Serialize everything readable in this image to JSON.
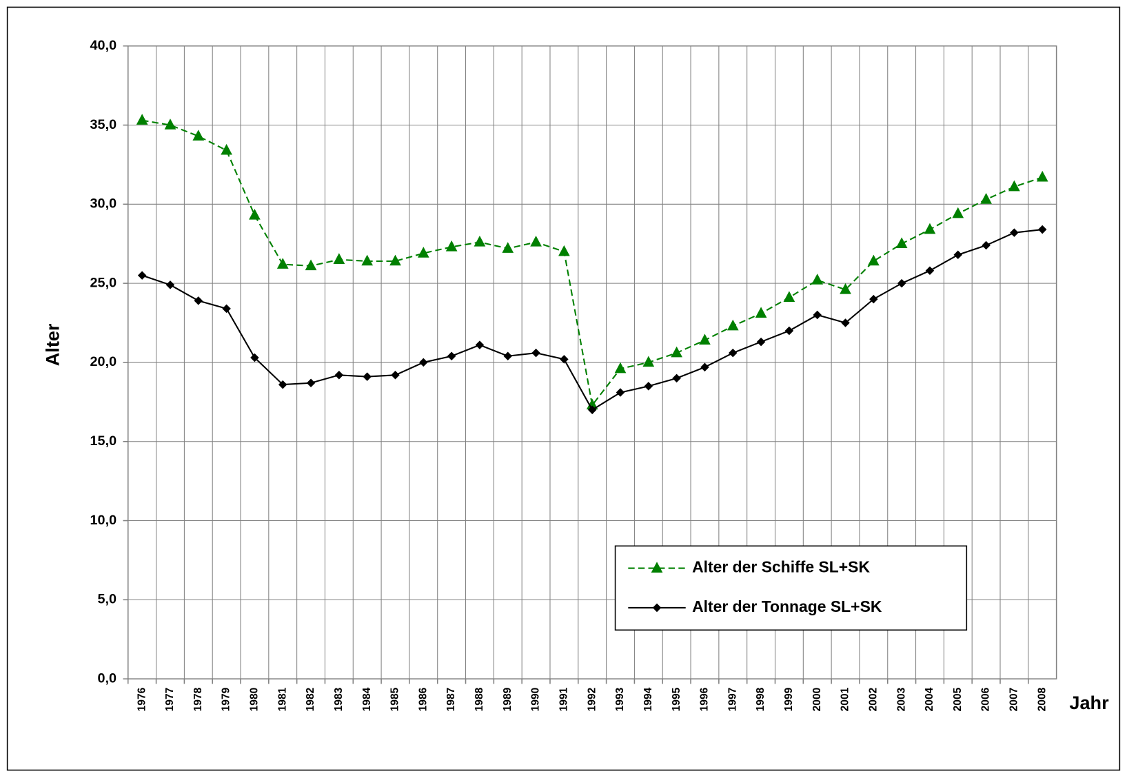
{
  "chart_data": {
    "type": "line",
    "x_label": "Jahr",
    "y_label": "Alter",
    "categories": [
      "1976",
      "1977",
      "1978",
      "1979",
      "1980",
      "1981",
      "1982",
      "1983",
      "1984",
      "1985",
      "1986",
      "1987",
      "1988",
      "1989",
      "1990",
      "1991",
      "1992",
      "1993",
      "1994",
      "1995",
      "1996",
      "1997",
      "1998",
      "1999",
      "2000",
      "2001",
      "2002",
      "2003",
      "2004",
      "2005",
      "2006",
      "2007",
      "2008"
    ],
    "series": [
      {
        "name": "Alter der Schiffe SL+SK",
        "color": "#008000",
        "line_style": "dashed",
        "marker": "triangle",
        "values": [
          35.3,
          35.0,
          34.3,
          33.4,
          29.3,
          26.2,
          26.1,
          26.5,
          26.4,
          26.4,
          26.9,
          27.3,
          27.6,
          27.2,
          27.6,
          27.0,
          17.3,
          19.6,
          20.0,
          20.6,
          21.4,
          22.3,
          23.1,
          24.1,
          25.2,
          24.6,
          26.4,
          27.5,
          28.4,
          29.4,
          30.3,
          31.1,
          31.7
        ]
      },
      {
        "name": "Alter der Tonnage SL+SK",
        "color": "#000000",
        "line_style": "solid",
        "marker": "diamond",
        "values": [
          25.5,
          24.9,
          23.9,
          23.4,
          20.3,
          18.6,
          18.7,
          19.2,
          19.1,
          19.2,
          20.0,
          20.4,
          21.1,
          20.4,
          20.6,
          20.2,
          17.0,
          18.1,
          18.5,
          19.0,
          19.7,
          20.6,
          21.3,
          22.0,
          23.0,
          22.5,
          24.0,
          25.0,
          25.8,
          26.8,
          27.4,
          28.2,
          28.4
        ]
      }
    ],
    "ylim": [
      0,
      40
    ],
    "yticks": [
      {
        "value": 0,
        "label": "0,0"
      },
      {
        "value": 5,
        "label": "5,0"
      },
      {
        "value": 10,
        "label": "10,0"
      },
      {
        "value": 15,
        "label": "15,0"
      },
      {
        "value": 20,
        "label": "20,0"
      },
      {
        "value": 25,
        "label": "25,0"
      },
      {
        "value": 30,
        "label": "30,0"
      },
      {
        "value": 35,
        "label": "35,0"
      },
      {
        "value": 40,
        "label": "40,0"
      }
    ],
    "grid": true,
    "legend": "lower right"
  }
}
